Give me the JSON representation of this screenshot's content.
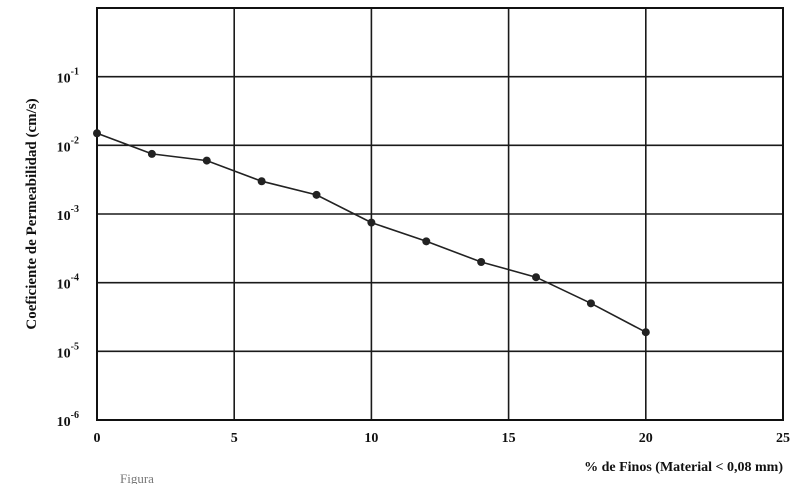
{
  "chart_data": {
    "type": "line",
    "title": "",
    "xlabel": "% de Finos (Material < 0,08 mm)",
    "ylabel": "Coeficiente de Permeabilidad (cm/s)",
    "xlim": [
      0,
      25
    ],
    "ylim": [
      1e-06,
      1
    ],
    "yscale": "log",
    "grid": true,
    "x_ticks": [
      {
        "value": 0,
        "label": "0"
      },
      {
        "value": 5,
        "label": "5"
      },
      {
        "value": 10,
        "label": "10"
      },
      {
        "value": 15,
        "label": "15"
      },
      {
        "value": 20,
        "label": "20"
      },
      {
        "value": 25,
        "label": "25"
      }
    ],
    "y_ticks": [
      {
        "value": 0.1,
        "base": "10",
        "exp": "-1"
      },
      {
        "value": 0.01,
        "base": "10",
        "exp": "-2"
      },
      {
        "value": 0.001,
        "base": "10",
        "exp": "-3"
      },
      {
        "value": 0.0001,
        "base": "10",
        "exp": "-4"
      },
      {
        "value": 1e-05,
        "base": "10",
        "exp": "-5"
      },
      {
        "value": 1e-06,
        "base": "10",
        "exp": "-6"
      }
    ],
    "series": [
      {
        "x": [
          0,
          2,
          4,
          6,
          8,
          10,
          12,
          14,
          16,
          18,
          20
        ],
        "y": [
          0.015,
          0.0075,
          0.006,
          0.003,
          0.0019,
          0.00075,
          0.0004,
          0.0002,
          0.00012,
          5e-05,
          1.9e-05
        ]
      }
    ],
    "caption": "Figura"
  },
  "colors": {
    "line": "#222222",
    "grid": "#1a1a1a",
    "axis": "#111111"
  }
}
